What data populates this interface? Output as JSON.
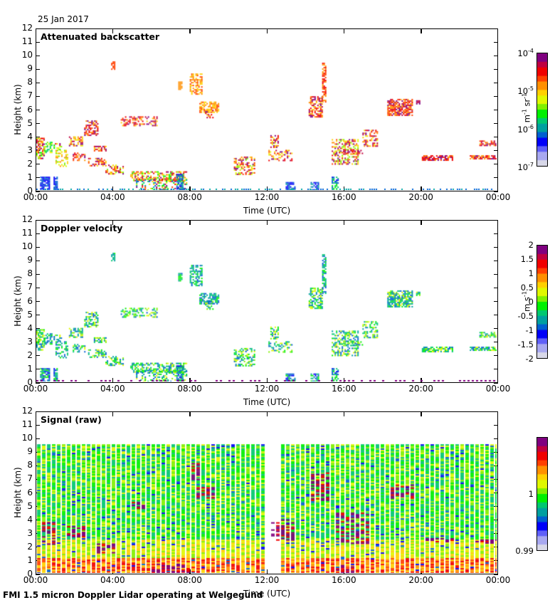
{
  "date": "25 Jan 2017",
  "footer": "FMI 1.5 micron Doppler Lidar operating at Welgegund",
  "chart_data": [
    {
      "type": "heatmap",
      "title": "Attenuated backscatter",
      "xlabel": "Time (UTC)",
      "ylabel": "Height (km)",
      "x_ticks": [
        "00:00",
        "04:00",
        "08:00",
        "12:00",
        "16:00",
        "20:00",
        "00:00"
      ],
      "y_ticks": [
        "0",
        "1",
        "2",
        "3",
        "4",
        "5",
        "6",
        "7",
        "8",
        "9",
        "10",
        "11",
        "12"
      ],
      "ylim": [
        0,
        12
      ],
      "colorbar": {
        "scale": "log",
        "range": [
          1e-07,
          0.0001
        ],
        "ticks": [
          {
            "base": "10",
            "exp": "-4"
          },
          {
            "base": "10",
            "exp": "-5"
          },
          {
            "base": "10",
            "exp": "-6"
          },
          {
            "base": "10",
            "exp": "-7"
          }
        ],
        "unit": {
          "a": "m",
          "a_exp": "-1",
          "b": "sr",
          "b_exp": "-1"
        }
      },
      "features": [
        {
          "t_start": 0.0,
          "t_end": 2.5,
          "h_bottom": 2.5,
          "h_top": 4.0,
          "desc": "low cloud layer"
        },
        {
          "t_start": 3.9,
          "t_end": 4.1,
          "h_bottom": 9.0,
          "h_top": 9.6
        },
        {
          "t_start": 4.5,
          "t_end": 6.2,
          "h_bottom": 4.8,
          "h_top": 5.4
        },
        {
          "t_start": 8.0,
          "t_end": 9.4,
          "h_bottom": 5.9,
          "h_top": 8.7
        },
        {
          "t_start": 14.4,
          "t_end": 15.2,
          "h_bottom": 5.5,
          "h_top": 9.5
        },
        {
          "t_start": 18.5,
          "t_end": 19.8,
          "h_bottom": 5.7,
          "h_top": 7.3
        },
        {
          "t_start": 21.0,
          "t_end": 24.0,
          "h_bottom": 2.2,
          "h_top": 3.8
        }
      ]
    },
    {
      "type": "heatmap",
      "title": "Doppler velocity",
      "xlabel": "Time (UTC)",
      "ylabel": "Height (km)",
      "x_ticks": [
        "00:00",
        "04:00",
        "08:00",
        "12:00",
        "16:00",
        "20:00",
        "00:00"
      ],
      "y_ticks": [
        "0",
        "1",
        "2",
        "3",
        "4",
        "5",
        "6",
        "7",
        "8",
        "9",
        "10",
        "11",
        "12"
      ],
      "ylim": [
        0,
        12
      ],
      "colorbar": {
        "scale": "linear",
        "range": [
          -2,
          2
        ],
        "ticks": [
          "2",
          "1.5",
          "1",
          "0.5",
          "0",
          "-0.5",
          "-1",
          "-1.5",
          "-2"
        ],
        "unit": {
          "a": "m",
          "b": "s",
          "b_exp": "-1"
        }
      }
    },
    {
      "type": "heatmap",
      "title": "Signal (raw)",
      "xlabel": "Time (UTC)",
      "ylabel": "Height (km)",
      "x_ticks": [
        "00:00",
        "04:00",
        "08:00",
        "12:00",
        "16:00",
        "20:00",
        "00:00"
      ],
      "y_ticks": [
        "0",
        "1",
        "2",
        "3",
        "4",
        "5",
        "6",
        "7",
        "8",
        "9",
        "10",
        "11",
        "12"
      ],
      "ylim": [
        0,
        12
      ],
      "data_top_km": 9.6,
      "gap_hours": [
        12.0,
        12.6
      ],
      "colorbar": {
        "scale": "linear",
        "range": [
          0.99,
          1.01
        ],
        "ticks": [
          "1",
          "0.99"
        ]
      }
    }
  ],
  "colors": {
    "palette": [
      "#d8d8e8",
      "#a8a8f0",
      "#6060f8",
      "#0000f8",
      "#0060d0",
      "#00a0a0",
      "#00c870",
      "#00f000",
      "#80f000",
      "#e0f800",
      "#ffd000",
      "#ff9000",
      "#ff4000",
      "#f00000",
      "#c00040",
      "#800080"
    ]
  }
}
